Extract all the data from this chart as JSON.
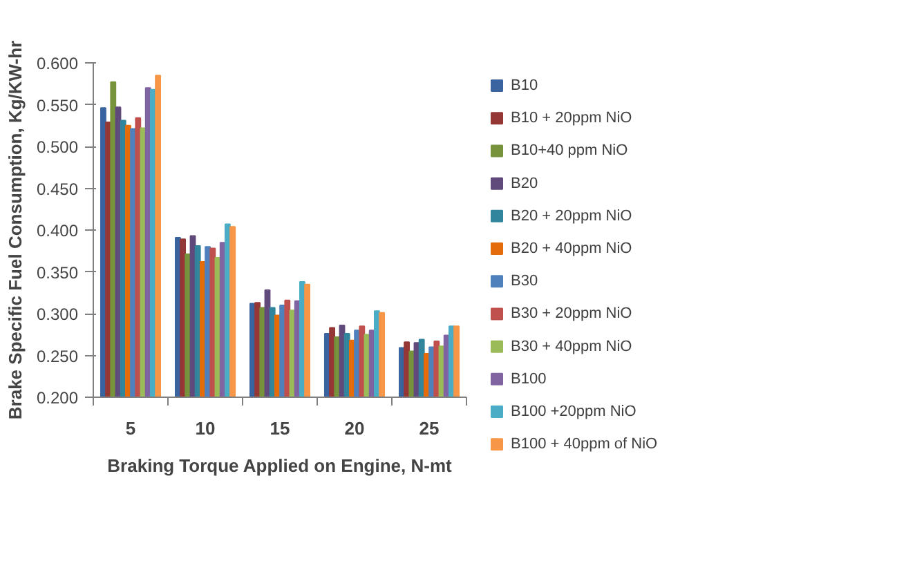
{
  "chart_data": {
    "type": "bar",
    "xlabel": "Braking Torque Applied on Engine, N-mt",
    "ylabel": "Brake Specific Fuel Consumption, Kg/KW-hr",
    "categories": [
      "5",
      "10",
      "15",
      "20",
      "25"
    ],
    "ylim": [
      0.2,
      0.6
    ],
    "yticks": [
      {
        "value": 0.2,
        "label": "0.200"
      },
      {
        "value": 0.25,
        "label": "0.250"
      },
      {
        "value": 0.3,
        "label": "0.300"
      },
      {
        "value": 0.35,
        "label": "0.350"
      },
      {
        "value": 0.4,
        "label": "0.400"
      },
      {
        "value": 0.45,
        "label": "0.450"
      },
      {
        "value": 0.5,
        "label": "0.500"
      },
      {
        "value": 0.55,
        "label": "0.550"
      },
      {
        "value": 0.6,
        "label": "0.600"
      }
    ],
    "grid": false,
    "legend": "right",
    "series": [
      {
        "name": "B10",
        "color": "#3a64a0",
        "values": [
          0.546,
          0.391,
          0.312,
          0.276,
          0.259
        ]
      },
      {
        "name": "B10 + 20ppm NiO",
        "color": "#953735",
        "values": [
          0.529,
          0.389,
          0.313,
          0.283,
          0.266
        ]
      },
      {
        "name": "B10+40 ppm NiO",
        "color": "#77933c",
        "values": [
          0.577,
          0.371,
          0.307,
          0.272,
          0.255
        ]
      },
      {
        "name": "B20",
        "color": "#604a7b",
        "values": [
          0.547,
          0.393,
          0.328,
          0.286,
          0.265
        ]
      },
      {
        "name": "B20 + 20ppm NiO",
        "color": "#31859c",
        "values": [
          0.531,
          0.381,
          0.307,
          0.276,
          0.269
        ]
      },
      {
        "name": "B20 + 40ppm NiO",
        "color": "#e46c0a",
        "values": [
          0.525,
          0.362,
          0.298,
          0.268,
          0.252
        ]
      },
      {
        "name": "B30",
        "color": "#4f81bd",
        "values": [
          0.521,
          0.38,
          0.31,
          0.28,
          0.26
        ]
      },
      {
        "name": "B30 + 20ppm NiO",
        "color": "#c0504d",
        "values": [
          0.534,
          0.378,
          0.316,
          0.285,
          0.267
        ]
      },
      {
        "name": "B30 + 40ppm NiO",
        "color": "#9bbb59",
        "values": [
          0.522,
          0.367,
          0.304,
          0.275,
          0.261
        ]
      },
      {
        "name": "B100",
        "color": "#8064a2",
        "values": [
          0.57,
          0.385,
          0.315,
          0.28,
          0.274
        ]
      },
      {
        "name": "B100 +20ppm NiO",
        "color": "#4bacc6",
        "values": [
          0.568,
          0.407,
          0.338,
          0.303,
          0.285
        ]
      },
      {
        "name": "B100 + 40ppm of NiO",
        "color": "#f79646",
        "values": [
          0.585,
          0.404,
          0.335,
          0.301,
          0.285
        ]
      }
    ]
  }
}
